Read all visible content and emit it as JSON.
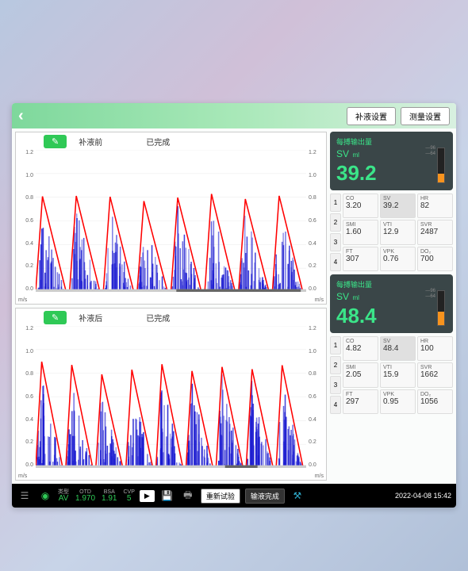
{
  "header": {
    "buttons": [
      "补液设置",
      "测量设置"
    ]
  },
  "charts": [
    {
      "label1": "补液前",
      "label2": "已完成",
      "y_ticks": [
        "1.2",
        "1.0",
        "0.8",
        "0.6",
        "0.4",
        "0.2",
        "0.0"
      ],
      "unit": "m/s",
      "peak_height": 0.67,
      "peaks": 8,
      "data_color": "#1818d0",
      "envelope_color": "#ff0000",
      "bar_start": 0.52,
      "bar_end": 0.98
    },
    {
      "label1": "补液后",
      "label2": "已完成",
      "y_ticks": [
        "1.2",
        "1.0",
        "0.8",
        "0.6",
        "0.4",
        "0.2",
        "0.0"
      ],
      "unit": "m/s",
      "peak_height": 0.72,
      "peaks": 9,
      "data_color": "#1818d0",
      "envelope_color": "#ff0000",
      "bar_start": 0.7,
      "bar_end": 0.82
    }
  ],
  "panels": [
    {
      "title": "每搏输出量",
      "label": "SV",
      "unit": "ml",
      "value": "39.2",
      "bar_fill": 0.25,
      "marks": [
        "96",
        "64"
      ],
      "metrics": [
        {
          "name": "CO",
          "val": "3.20"
        },
        {
          "name": "SV",
          "val": "39.2",
          "active": true
        },
        {
          "name": "HR",
          "val": "82"
        },
        {
          "name": "SMI",
          "val": "1.60"
        },
        {
          "name": "VTI",
          "val": "12.9"
        },
        {
          "name": "SVR",
          "val": "2487"
        },
        {
          "name": "FT",
          "val": "307"
        },
        {
          "name": "VPK",
          "val": "0.76"
        },
        {
          "name": "DO₂",
          "val": "700"
        }
      ]
    },
    {
      "title": "每搏输出量",
      "label": "SV",
      "unit": "ml",
      "value": "48.4",
      "bar_fill": 0.4,
      "marks": [
        "96",
        "64"
      ],
      "metrics": [
        {
          "name": "CO",
          "val": "4.82"
        },
        {
          "name": "SV",
          "val": "48.4",
          "active": true
        },
        {
          "name": "HR",
          "val": "100"
        },
        {
          "name": "SMI",
          "val": "2.05"
        },
        {
          "name": "VTI",
          "val": "15.9"
        },
        {
          "name": "SVR",
          "val": "1662"
        },
        {
          "name": "FT",
          "val": "297"
        },
        {
          "name": "VPK",
          "val": "0.95"
        },
        {
          "name": "DO₂",
          "val": "1056"
        }
      ]
    }
  ],
  "footer": {
    "fields": [
      {
        "label": "类型",
        "value": "AV"
      },
      {
        "label": "OTD",
        "value": "1.970"
      },
      {
        "label": "BSA",
        "value": "1.91"
      },
      {
        "label": "CVP",
        "value": "5"
      }
    ],
    "buttons": [
      "重新试验",
      "输液完成"
    ],
    "timestamp": "2022-04-08 15:42"
  },
  "nums": [
    "1",
    "2",
    "3",
    "4"
  ]
}
